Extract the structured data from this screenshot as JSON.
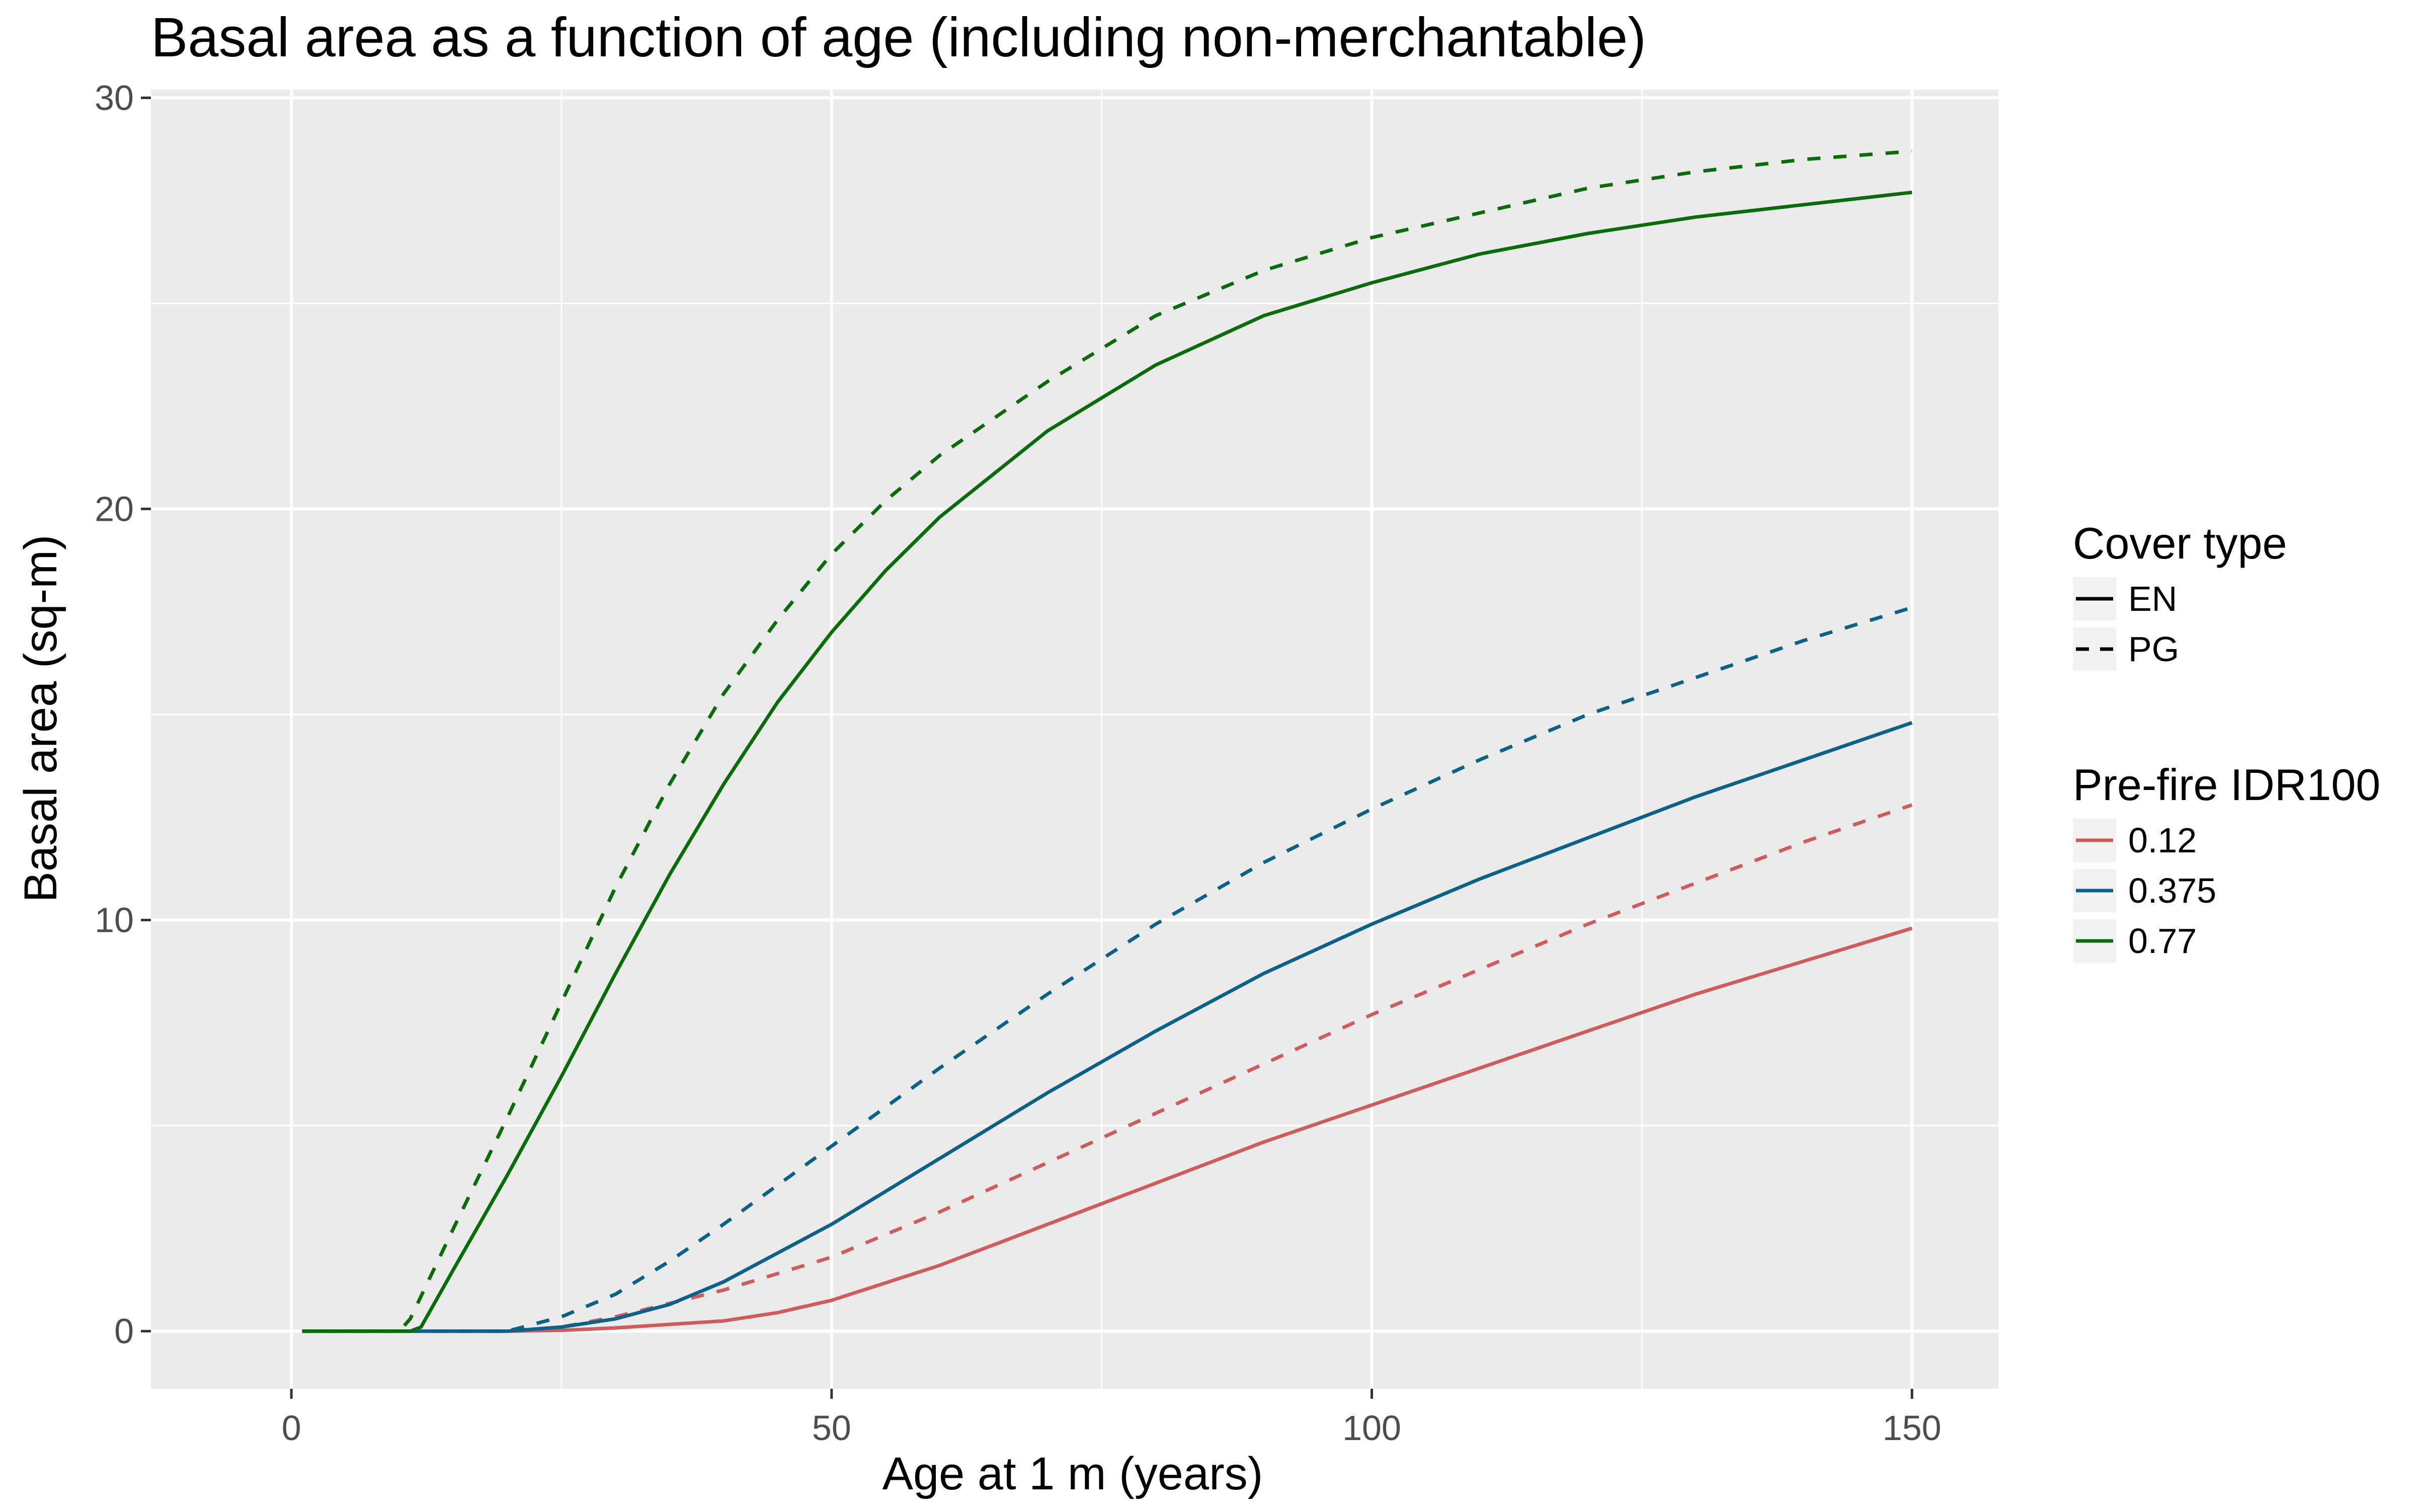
{
  "chart_data": {
    "type": "line",
    "title": "Basal area as a function of age (including non-merchantable)",
    "xlabel": "Age at 1 m (years)",
    "ylabel": "Basal area (sq-m)",
    "xlim": [
      -13,
      158
    ],
    "ylim": [
      -1.4,
      30.2
    ],
    "xticks": [
      0,
      50,
      100,
      150
    ],
    "yticks": [
      0,
      10,
      20,
      30
    ],
    "x_minor": [
      25,
      75,
      125
    ],
    "y_minor": [
      5,
      15,
      25
    ],
    "grid": true,
    "panel_background": "#EBEBEB",
    "legend_position": "right",
    "legends": [
      {
        "title": "Cover type",
        "entries": [
          {
            "label": "EN",
            "linetype": "solid"
          },
          {
            "label": "PG",
            "linetype": "dashed"
          }
        ]
      },
      {
        "title": "Pre-fire IDR100",
        "entries": [
          {
            "label": "0.12",
            "color": "#CD5C5C"
          },
          {
            "label": "0.375",
            "color": "#0B6187"
          },
          {
            "label": "0.77",
            "color": "#0A6B0A"
          }
        ]
      }
    ],
    "series": [
      {
        "name": "EN, 0.12",
        "cover": "EN",
        "idr": "0.12",
        "color": "#CD5C5C",
        "linetype": "solid",
        "x": [
          1,
          20,
          25,
          30,
          40,
          45,
          50,
          60,
          70,
          80,
          90,
          100,
          110,
          120,
          130,
          140,
          150
        ],
        "y": [
          0,
          0,
          0.02,
          0.08,
          0.25,
          0.45,
          0.75,
          1.6,
          2.6,
          3.6,
          4.6,
          5.5,
          6.4,
          7.3,
          8.2,
          9.0,
          9.8
        ]
      },
      {
        "name": "PG, 0.12",
        "cover": "PG",
        "idr": "0.12",
        "color": "#CD5C5C",
        "linetype": "dashed",
        "x": [
          1,
          20,
          25,
          30,
          40,
          50,
          60,
          70,
          80,
          90,
          100,
          110,
          120,
          130,
          140,
          150
        ],
        "y": [
          0,
          0,
          0.1,
          0.35,
          1.0,
          1.8,
          2.9,
          4.1,
          5.3,
          6.5,
          7.7,
          8.8,
          9.9,
          10.9,
          11.9,
          12.8
        ]
      },
      {
        "name": "EN, 0.375",
        "cover": "EN",
        "idr": "0.375",
        "color": "#0B6187",
        "linetype": "solid",
        "x": [
          1,
          20,
          25,
          30,
          35,
          40,
          50,
          60,
          70,
          80,
          90,
          100,
          110,
          120,
          130,
          140,
          150
        ],
        "y": [
          0,
          0,
          0.1,
          0.3,
          0.65,
          1.2,
          2.6,
          4.2,
          5.8,
          7.3,
          8.7,
          9.9,
          11.0,
          12.0,
          13.0,
          13.9,
          14.8
        ]
      },
      {
        "name": "PG, 0.375",
        "cover": "PG",
        "idr": "0.375",
        "color": "#0B6187",
        "linetype": "dashed",
        "x": [
          1,
          20,
          25,
          30,
          35,
          40,
          50,
          60,
          70,
          80,
          90,
          100,
          110,
          120,
          130,
          140,
          150
        ],
        "y": [
          0,
          0,
          0.35,
          0.9,
          1.7,
          2.6,
          4.5,
          6.4,
          8.2,
          9.9,
          11.4,
          12.7,
          13.9,
          15.0,
          15.9,
          16.8,
          17.6
        ]
      },
      {
        "name": "EN, 0.77",
        "cover": "EN",
        "idr": "0.77",
        "color": "#0A6B0A",
        "linetype": "solid",
        "x": [
          1,
          11,
          12,
          15,
          20,
          25,
          30,
          35,
          40,
          45,
          50,
          55,
          60,
          70,
          80,
          90,
          100,
          110,
          120,
          130,
          140,
          150
        ],
        "y": [
          0,
          0,
          0.1,
          1.5,
          3.8,
          6.2,
          8.7,
          11.1,
          13.3,
          15.3,
          17.0,
          18.5,
          19.8,
          21.9,
          23.5,
          24.7,
          25.5,
          26.2,
          26.7,
          27.1,
          27.4,
          27.7
        ]
      },
      {
        "name": "PG, 0.77",
        "cover": "PG",
        "idr": "0.77",
        "color": "#0A6B0A",
        "linetype": "dashed",
        "x": [
          1,
          10,
          11,
          15,
          20,
          25,
          30,
          35,
          40,
          45,
          50,
          55,
          60,
          70,
          80,
          90,
          100,
          110,
          120,
          130,
          140,
          150
        ],
        "y": [
          0,
          0,
          0.3,
          2.5,
          5.2,
          8.0,
          10.8,
          13.3,
          15.5,
          17.3,
          18.9,
          20.2,
          21.3,
          23.1,
          24.7,
          25.8,
          26.6,
          27.2,
          27.8,
          28.2,
          28.5,
          28.7
        ]
      }
    ]
  }
}
